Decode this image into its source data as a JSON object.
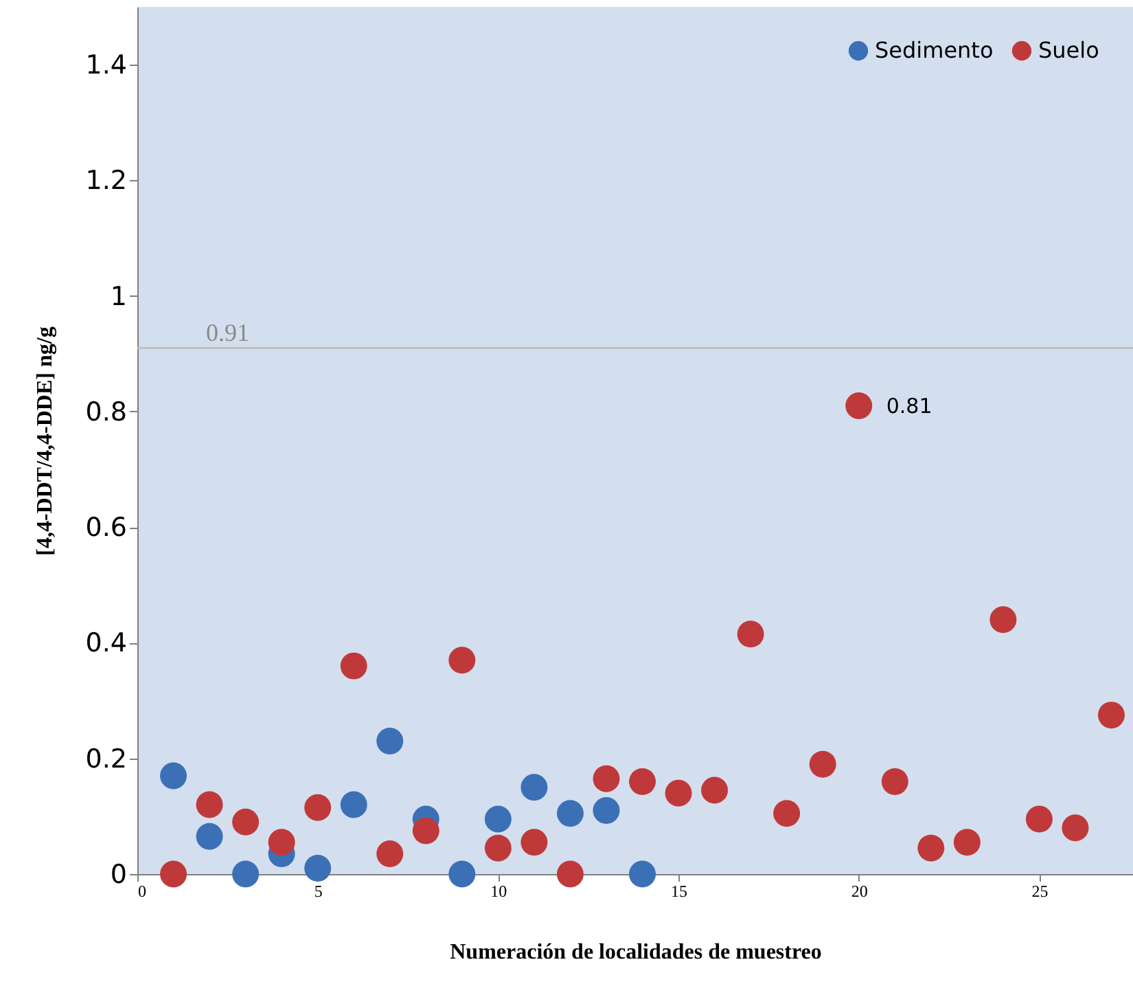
{
  "chart_data": {
    "type": "scatter",
    "xlabel": "Numeración  de localidades  de muestreo",
    "ylabel": "[4,4-DDT/4,4-DDE]  ng/g",
    "x": [
      1,
      2,
      3,
      4,
      5,
      6,
      7,
      8,
      9,
      10,
      11,
      12,
      13,
      14,
      15,
      16,
      17,
      18,
      19,
      20,
      21,
      22,
      23,
      24,
      25,
      26,
      27
    ],
    "series": [
      {
        "name": "Sedimento",
        "color": "#3b70b6",
        "x": [
          1,
          2,
          3,
          4,
          5,
          6,
          7,
          8,
          9,
          10,
          11,
          12,
          13,
          14
        ],
        "values": [
          0.17,
          0.065,
          0.0,
          0.035,
          0.01,
          0.12,
          0.23,
          0.095,
          0.0,
          0.095,
          0.15,
          0.105,
          0.11,
          0.0
        ]
      },
      {
        "name": "Suelo",
        "color": "#c0393a",
        "values": [
          0.0,
          0.12,
          0.09,
          0.055,
          0.115,
          0.36,
          0.035,
          0.075,
          0.37,
          0.045,
          0.055,
          0.0,
          0.165,
          0.16,
          0.14,
          0.145,
          0.415,
          0.105,
          0.19,
          0.81,
          0.16,
          0.045,
          0.055,
          0.44,
          0.095,
          0.08,
          0.275
        ]
      }
    ],
    "annotations": [
      {
        "text": "0.81",
        "x": 20,
        "y": 0.81
      }
    ],
    "ref_lines": [
      {
        "axis": "y",
        "value": 0.91,
        "label": "0.91",
        "color": "#bfbfbf"
      }
    ],
    "xlim": [
      0,
      27.6
    ],
    "xticks": [
      0,
      5,
      10,
      15,
      20,
      25
    ],
    "ylim": [
      0,
      1.5
    ],
    "yticks": [
      0,
      0.2,
      0.4,
      0.6,
      0.8,
      1,
      1.2,
      1.4
    ],
    "legend": "top right",
    "marker": "circle"
  }
}
